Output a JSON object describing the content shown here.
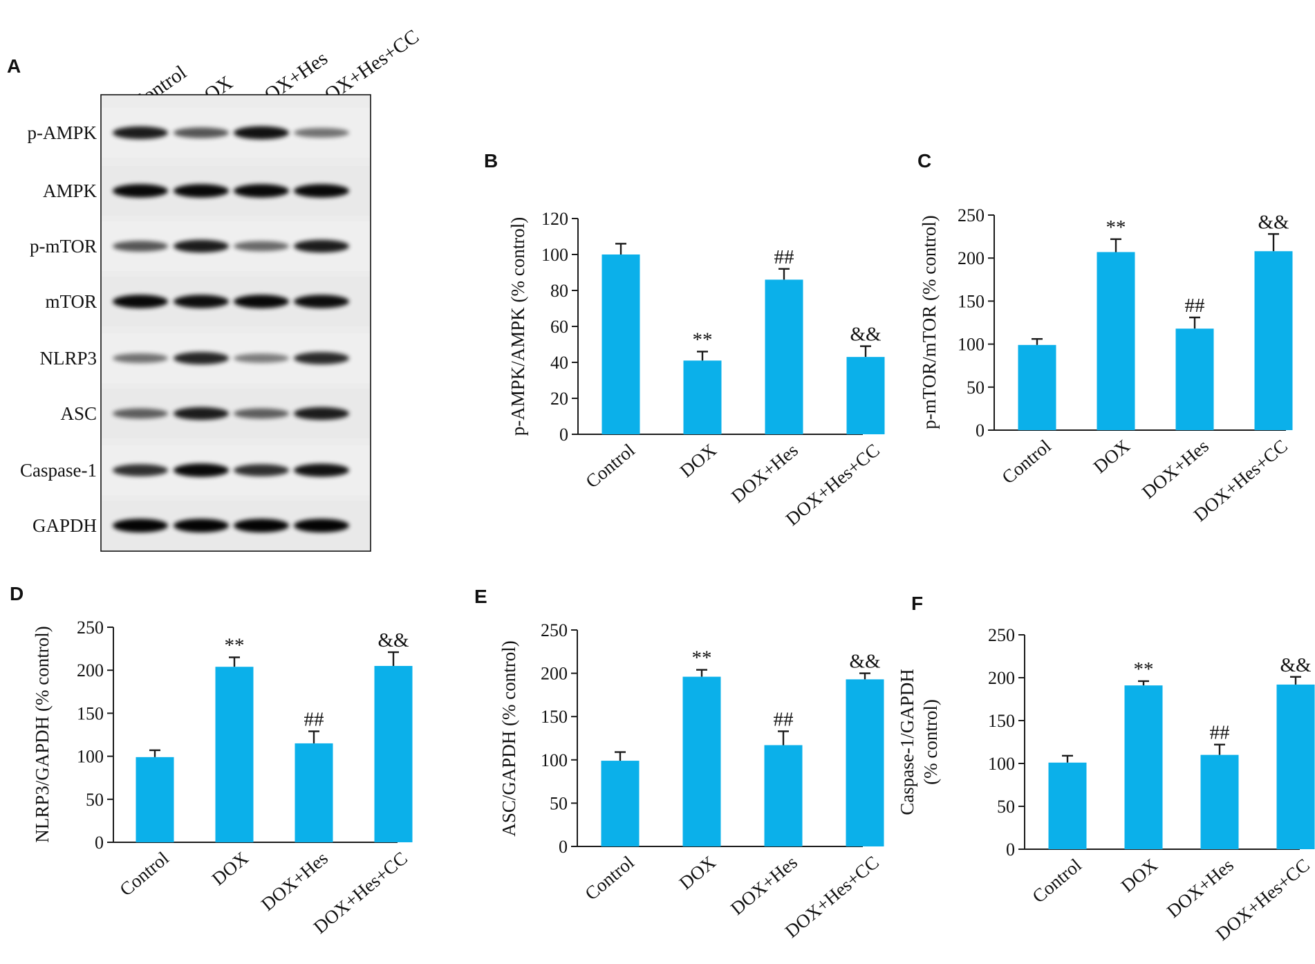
{
  "colors": {
    "bar": "#0bb0ea",
    "axis": "#1a1a1a",
    "text": "#111111"
  },
  "blot": {
    "panel_label": "A",
    "lanes": [
      "Control",
      "DOX",
      "DOX+Hes",
      "DOX+Hes+CC"
    ],
    "rows": [
      {
        "label": "p-AMPK",
        "intensity": [
          0.85,
          0.55,
          0.9,
          0.4
        ]
      },
      {
        "label": "AMPK",
        "intensity": [
          0.95,
          0.95,
          0.95,
          0.95
        ]
      },
      {
        "label": "p-mTOR",
        "intensity": [
          0.55,
          0.85,
          0.45,
          0.85
        ]
      },
      {
        "label": "mTOR",
        "intensity": [
          0.95,
          0.92,
          0.95,
          0.92
        ]
      },
      {
        "label": "NLRP3",
        "intensity": [
          0.4,
          0.8,
          0.35,
          0.78
        ]
      },
      {
        "label": "ASC",
        "intensity": [
          0.5,
          0.85,
          0.5,
          0.85
        ]
      },
      {
        "label": "Caspase-1",
        "intensity": [
          0.75,
          0.95,
          0.75,
          0.9
        ]
      },
      {
        "label": "GAPDH",
        "intensity": [
          0.98,
          0.98,
          0.98,
          0.98
        ]
      }
    ]
  },
  "chart_data": [
    {
      "panel_label": "B",
      "type": "bar",
      "categories": [
        "Control",
        "DOX",
        "DOX+Hes",
        "DOX+Hes+CC"
      ],
      "values": [
        100,
        41,
        86,
        43
      ],
      "errors": [
        6,
        5,
        6,
        6
      ],
      "annotations": [
        "",
        "**",
        "##",
        "&&"
      ],
      "ylabel": [
        "p-AMPK/AMPK (% control)"
      ],
      "ylim": [
        0,
        120
      ],
      "yticks": [
        0,
        20,
        40,
        60,
        80,
        100,
        120
      ]
    },
    {
      "panel_label": "C",
      "type": "bar",
      "categories": [
        "Control",
        "DOX",
        "DOX+Hes",
        "DOX+Hes+CC"
      ],
      "values": [
        99,
        207,
        118,
        208
      ],
      "errors": [
        7,
        15,
        13,
        20
      ],
      "annotations": [
        "",
        "**",
        "##",
        "&&"
      ],
      "ylabel": [
        "p-mTOR/mTOR (% control)"
      ],
      "ylim": [
        0,
        250
      ],
      "yticks": [
        0,
        50,
        100,
        150,
        200,
        250
      ]
    },
    {
      "panel_label": "D",
      "type": "bar",
      "categories": [
        "Control",
        "DOX",
        "DOX+Hes",
        "DOX+Hes+CC"
      ],
      "values": [
        99,
        204,
        115,
        205
      ],
      "errors": [
        8,
        11,
        14,
        16
      ],
      "annotations": [
        "",
        "**",
        "##",
        "&&"
      ],
      "ylabel": [
        "NLRP3/GAPDH (% control)"
      ],
      "ylim": [
        0,
        250
      ],
      "yticks": [
        0,
        50,
        100,
        150,
        200,
        250
      ]
    },
    {
      "panel_label": "E",
      "type": "bar",
      "categories": [
        "Control",
        "DOX",
        "DOX+Hes",
        "DOX+Hes+CC"
      ],
      "values": [
        99,
        196,
        117,
        193
      ],
      "errors": [
        10,
        8,
        16,
        7
      ],
      "annotations": [
        "",
        "**",
        "##",
        "&&"
      ],
      "ylabel": [
        "ASC/GAPDH (% control)"
      ],
      "ylim": [
        0,
        250
      ],
      "yticks": [
        0,
        50,
        100,
        150,
        200,
        250
      ]
    },
    {
      "panel_label": "F",
      "type": "bar",
      "categories": [
        "Control",
        "DOX",
        "DOX+Hes",
        "DOX+Hes+CC"
      ],
      "values": [
        101,
        191,
        110,
        192
      ],
      "errors": [
        8,
        5,
        12,
        9
      ],
      "annotations": [
        "",
        "**",
        "##",
        "&&"
      ],
      "ylabel": [
        "Caspase-1/GAPDH",
        "(% control)"
      ],
      "ylim": [
        0,
        250
      ],
      "yticks": [
        0,
        50,
        100,
        150,
        200,
        250
      ]
    }
  ]
}
